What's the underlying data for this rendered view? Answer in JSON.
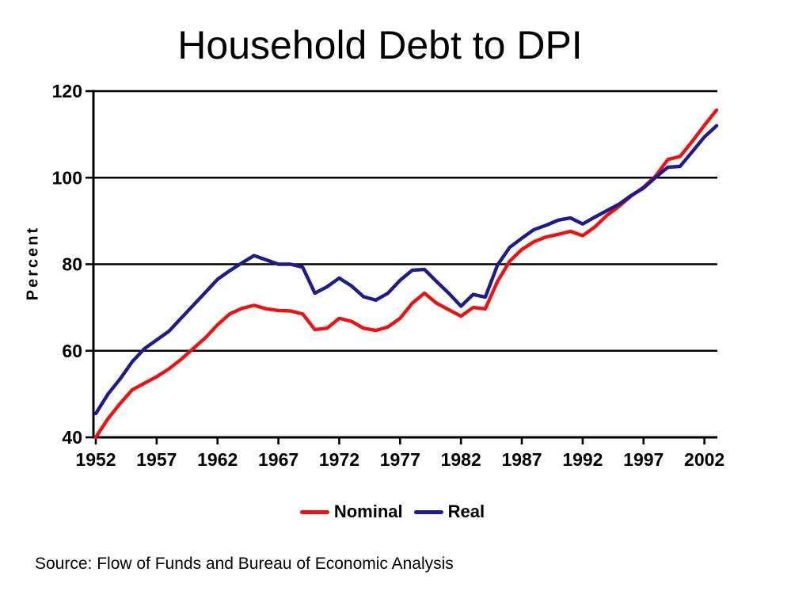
{
  "page": {
    "background": "#ffffff"
  },
  "source_note": "Source: Flow of Funds and Bureau of Economic Analysis",
  "chart_data": {
    "type": "line",
    "title": "Household Debt to DPI",
    "xlabel": "",
    "ylabel": "Percent",
    "ylim": [
      40,
      120
    ],
    "yticks": [
      40,
      60,
      80,
      100,
      120
    ],
    "xticks": [
      1952,
      1957,
      1962,
      1967,
      1972,
      1977,
      1982,
      1987,
      1992,
      1997,
      2002
    ],
    "grid": "horizontal-black",
    "legend_position": "bottom-center",
    "axis_color": "#000000",
    "x": [
      1952,
      1953,
      1954,
      1955,
      1956,
      1957,
      1958,
      1959,
      1960,
      1961,
      1962,
      1963,
      1964,
      1965,
      1966,
      1967,
      1968,
      1969,
      1970,
      1971,
      1972,
      1973,
      1974,
      1975,
      1976,
      1977,
      1978,
      1979,
      1980,
      1981,
      1982,
      1983,
      1984,
      1985,
      1986,
      1987,
      1988,
      1989,
      1990,
      1991,
      1992,
      1993,
      1994,
      1995,
      1996,
      1997,
      1998,
      1999,
      2000,
      2001,
      2002,
      2003
    ],
    "series": [
      {
        "name": "Nominal",
        "color": "#ee1111",
        "values": [
          40.0,
          44.3,
          47.8,
          51.0,
          52.5,
          54.0,
          55.8,
          58.0,
          60.5,
          63.0,
          66.0,
          68.5,
          69.8,
          70.5,
          69.7,
          69.3,
          69.2,
          68.5,
          64.9,
          65.2,
          67.5,
          66.8,
          65.2,
          64.7,
          65.5,
          67.5,
          71.0,
          73.3,
          71.0,
          69.5,
          68.0,
          70.0,
          69.7,
          76.0,
          80.7,
          83.4,
          85.2,
          86.3,
          86.9,
          87.6,
          86.6,
          88.6,
          91.3,
          93.4,
          95.8,
          97.8,
          100.4,
          104.2,
          104.9,
          108.4,
          112.1,
          115.6
        ]
      },
      {
        "name": "Real",
        "color": "#1c1c8c",
        "values": [
          45.5,
          50.0,
          53.5,
          57.5,
          60.5,
          62.5,
          64.5,
          67.5,
          70.5,
          73.5,
          76.5,
          78.5,
          80.3,
          82.0,
          81.0,
          80.0,
          80.0,
          79.3,
          73.3,
          74.8,
          76.8,
          75.0,
          72.5,
          71.7,
          73.3,
          76.3,
          78.6,
          78.8,
          76.0,
          73.3,
          70.3,
          73.0,
          72.4,
          79.8,
          83.9,
          86.0,
          88.0,
          89.0,
          90.2,
          90.7,
          89.3,
          90.9,
          92.4,
          93.9,
          95.9,
          97.6,
          100.1,
          102.4,
          102.6,
          106.0,
          109.4,
          112.0
        ]
      }
    ]
  }
}
